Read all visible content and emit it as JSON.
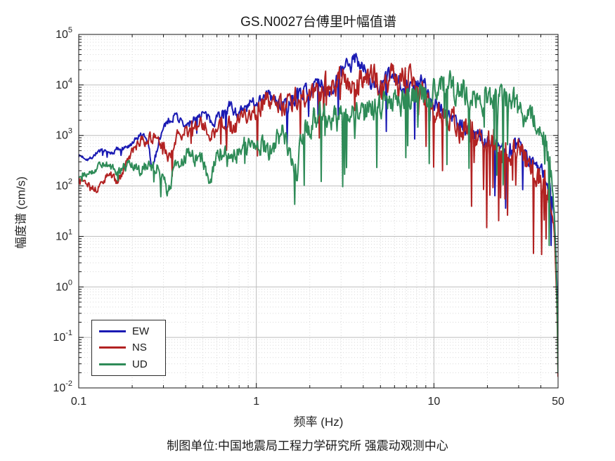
{
  "caption": "制图单位:中国地震局工程力学研究所 强震动观测中心",
  "colors": {
    "background": "#ffffff",
    "axis": "#151515",
    "tick_label": "#262626",
    "grid_major": "#bdbdbd",
    "grid_minor": "#d9d9d9",
    "ew_blue": "#1a1ab3",
    "ns_red": "#b22222",
    "ud_green": "#2e8b57"
  },
  "chart_data": {
    "type": "line",
    "title": "GS.N0027台傅里叶幅值谱",
    "xlabel": "频率 (Hz)",
    "ylabel": "幅度谱 (cm/s)",
    "xscale": "log",
    "yscale": "log",
    "xlim": [
      0.1,
      50
    ],
    "ylim": [
      0.01,
      100000
    ],
    "x_ticks": {
      "values": [
        0.1,
        1,
        10,
        50
      ],
      "labels": [
        "0.1",
        "1",
        "10",
        "50"
      ]
    },
    "y_tick_exponents": [
      5,
      4,
      3,
      2,
      1,
      0,
      -1,
      -2
    ],
    "grid": {
      "major": true,
      "minor": true
    },
    "legend": {
      "position": "lower-left",
      "entries": [
        "EW",
        "NS",
        "UD"
      ]
    },
    "samples_per_series": 760,
    "series": [
      {
        "name": "EW",
        "color": "#1a1ab3",
        "seed": 7,
        "noise_decades": 0.18,
        "dip_prob": 0.035,
        "dip_depth": 0.9,
        "envelope": [
          [
            0.1,
            400
          ],
          [
            0.115,
            340
          ],
          [
            0.13,
            500
          ],
          [
            0.15,
            430
          ],
          [
            0.17,
            560
          ],
          [
            0.2,
            620
          ],
          [
            0.22,
            1000
          ],
          [
            0.245,
            750
          ],
          [
            0.26,
            200
          ],
          [
            0.285,
            900
          ],
          [
            0.31,
            1800
          ],
          [
            0.35,
            2600
          ],
          [
            0.4,
            1400
          ],
          [
            0.45,
            2200
          ],
          [
            0.5,
            2800
          ],
          [
            0.55,
            1800
          ],
          [
            0.62,
            2600
          ],
          [
            0.7,
            3800
          ],
          [
            0.8,
            2600
          ],
          [
            0.9,
            3600
          ],
          [
            1.0,
            5000
          ],
          [
            1.15,
            6500
          ],
          [
            1.3,
            4500
          ],
          [
            1.5,
            3800
          ],
          [
            1.7,
            6500
          ],
          [
            2.0,
            8500
          ],
          [
            2.3,
            10000
          ],
          [
            2.6,
            8000
          ],
          [
            3.0,
            16000
          ],
          [
            3.4,
            26000
          ],
          [
            3.7,
            33000
          ],
          [
            4.0,
            26000
          ],
          [
            4.3,
            11000
          ],
          [
            4.8,
            9000
          ],
          [
            5.5,
            13000
          ],
          [
            6.5,
            12000
          ],
          [
            7.5,
            9000
          ],
          [
            8.5,
            11000
          ],
          [
            10,
            5000
          ],
          [
            12,
            2600
          ],
          [
            15,
            1400
          ],
          [
            18,
            900
          ],
          [
            22,
            700
          ],
          [
            26,
            500
          ],
          [
            30,
            700
          ],
          [
            34,
            350
          ],
          [
            38,
            250
          ],
          [
            42,
            160
          ],
          [
            45,
            90
          ],
          [
            47.5,
            30
          ],
          [
            49,
            2
          ],
          [
            49.7,
            0.2
          ],
          [
            50,
            0.04
          ]
        ]
      },
      {
        "name": "NS",
        "color": "#b22222",
        "seed": 13,
        "noise_decades": 0.28,
        "dip_prob": 0.06,
        "dip_depth": 1.3,
        "envelope": [
          [
            0.1,
            150
          ],
          [
            0.125,
            85
          ],
          [
            0.15,
            175
          ],
          [
            0.165,
            115
          ],
          [
            0.2,
            480
          ],
          [
            0.23,
            820
          ],
          [
            0.26,
            900
          ],
          [
            0.29,
            650
          ],
          [
            0.32,
            380
          ],
          [
            0.36,
            900
          ],
          [
            0.42,
            1300
          ],
          [
            0.5,
            1600
          ],
          [
            0.58,
            1100
          ],
          [
            0.65,
            2000
          ],
          [
            0.75,
            1400
          ],
          [
            0.85,
            2200
          ],
          [
            1.0,
            3200
          ],
          [
            1.2,
            5200
          ],
          [
            1.4,
            3600
          ],
          [
            1.7,
            5200
          ],
          [
            2.0,
            6500
          ],
          [
            2.4,
            9500
          ],
          [
            2.8,
            13000
          ],
          [
            3.1,
            15000
          ],
          [
            3.5,
            8500
          ],
          [
            4.0,
            12000
          ],
          [
            4.6,
            15000
          ],
          [
            5.2,
            9000
          ],
          [
            6.0,
            14000
          ],
          [
            7.0,
            15000
          ],
          [
            8.0,
            8000
          ],
          [
            9.0,
            6000
          ],
          [
            10,
            3800
          ],
          [
            12,
            2100
          ],
          [
            15,
            1300
          ],
          [
            18,
            850
          ],
          [
            22,
            600
          ],
          [
            26,
            380
          ],
          [
            30,
            520
          ],
          [
            34,
            300
          ],
          [
            38,
            180
          ],
          [
            42,
            120
          ],
          [
            45,
            60
          ],
          [
            47.5,
            15
          ],
          [
            49,
            1
          ],
          [
            49.7,
            0.08
          ],
          [
            50,
            0.015
          ]
        ]
      },
      {
        "name": "UD",
        "color": "#2e8b57",
        "seed": 29,
        "noise_decades": 0.3,
        "dip_prob": 0.07,
        "dip_depth": 1.3,
        "envelope": [
          [
            0.1,
            160
          ],
          [
            0.12,
            200
          ],
          [
            0.14,
            285
          ],
          [
            0.165,
            185
          ],
          [
            0.19,
            260
          ],
          [
            0.22,
            200
          ],
          [
            0.25,
            240
          ],
          [
            0.28,
            230
          ],
          [
            0.305,
            110
          ],
          [
            0.32,
            65
          ],
          [
            0.35,
            300
          ],
          [
            0.42,
            420
          ],
          [
            0.5,
            300
          ],
          [
            0.55,
            140
          ],
          [
            0.62,
            480
          ],
          [
            0.72,
            350
          ],
          [
            0.85,
            600
          ],
          [
            1.0,
            850
          ],
          [
            1.2,
            480
          ],
          [
            1.4,
            1100
          ],
          [
            1.6,
            300
          ],
          [
            1.68,
            110
          ],
          [
            1.8,
            900
          ],
          [
            2.1,
            2200
          ],
          [
            2.5,
            2600
          ],
          [
            2.9,
            1900
          ],
          [
            3.4,
            3200
          ],
          [
            4.0,
            2800
          ],
          [
            4.8,
            4200
          ],
          [
            5.6,
            3400
          ],
          [
            6.5,
            4800
          ],
          [
            7.5,
            5400
          ],
          [
            8.5,
            6200
          ],
          [
            10,
            7800
          ],
          [
            11.5,
            9200
          ],
          [
            13,
            7800
          ],
          [
            15,
            6800
          ],
          [
            17,
            6200
          ],
          [
            20,
            5600
          ],
          [
            23,
            5000
          ],
          [
            26,
            4600
          ],
          [
            30,
            3600
          ],
          [
            33,
            2800
          ],
          [
            36,
            2000
          ],
          [
            39,
            1100
          ],
          [
            42,
            650
          ],
          [
            44,
            320
          ],
          [
            46,
            120
          ],
          [
            47.5,
            30
          ],
          [
            48.7,
            3
          ],
          [
            49.5,
            0.3
          ],
          [
            50,
            0.02
          ]
        ]
      }
    ]
  }
}
